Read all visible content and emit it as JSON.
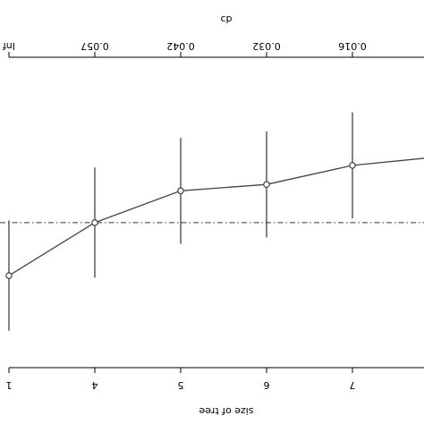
{
  "chart_data": {
    "type": "line",
    "xlabel": "size of tree",
    "top_axis_label": "cp",
    "x_ticks": [
      "1",
      "4",
      "5",
      "6",
      "7"
    ],
    "top_ticks": [
      "Inf",
      "0.057",
      "0.042",
      "0.032",
      "0.016"
    ],
    "series": [
      {
        "x": [
          1,
          4,
          5,
          6,
          7,
          8
        ],
        "y": [
          0.7,
          0.95,
          1.1,
          1.13,
          1.22,
          1.26
        ],
        "error": [
          0.26,
          0.26,
          0.25,
          0.25,
          0.25,
          null
        ]
      }
    ],
    "reference_line": 0.95,
    "ylim": [
      0.0,
      2.0
    ],
    "grid": false,
    "y_axis_shown": false
  }
}
